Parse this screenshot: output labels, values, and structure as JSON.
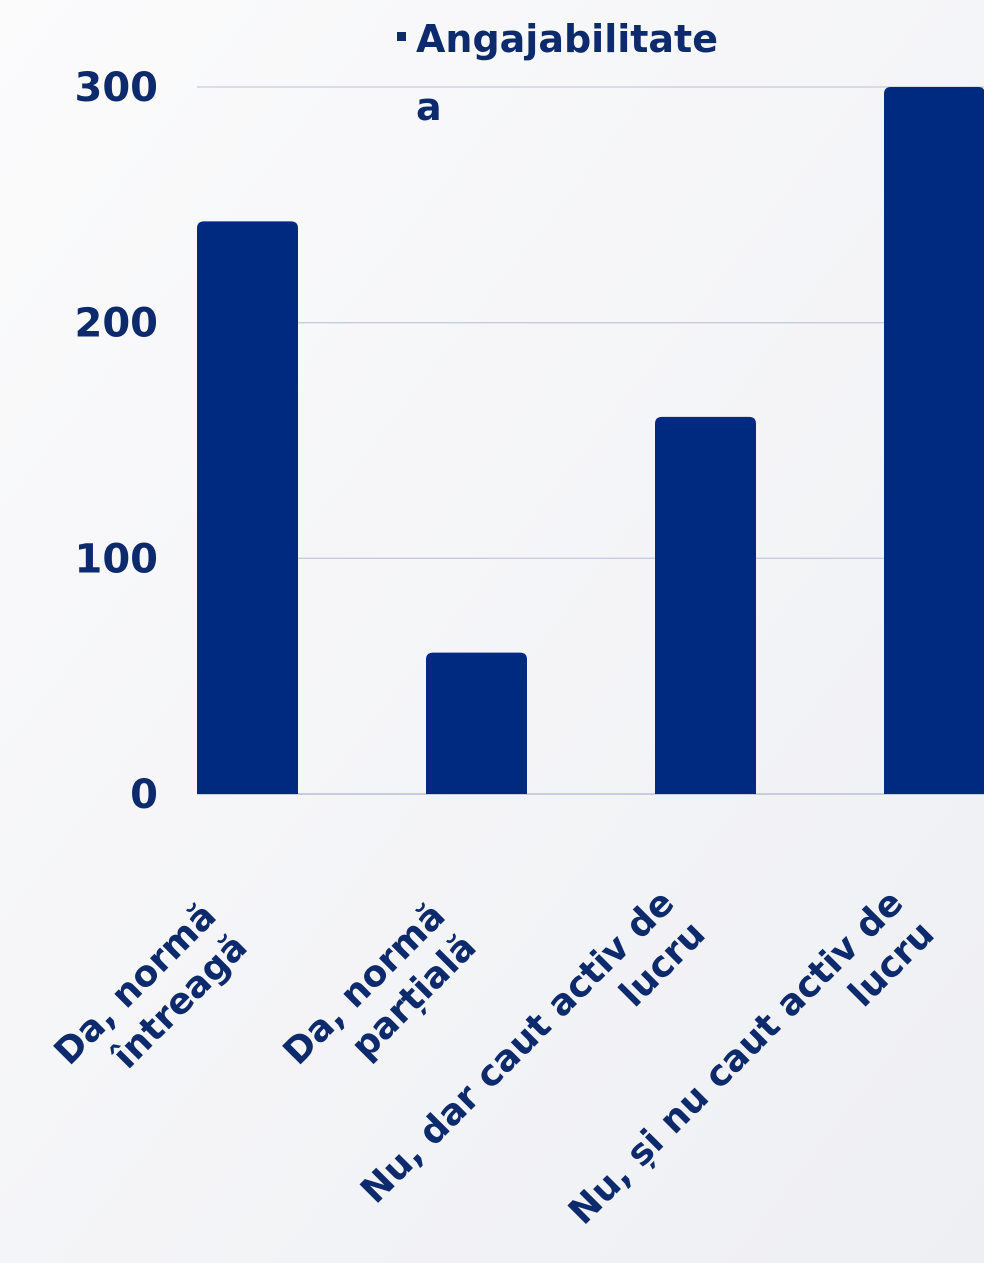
{
  "chart_data": {
    "type": "bar",
    "title": "",
    "xlabel": "",
    "ylabel": "",
    "categories": [
      [
        "Da, normă",
        "întreagă"
      ],
      [
        "Da, normă",
        "parțială"
      ],
      [
        "Nu, dar caut activ de",
        "lucru"
      ],
      [
        "Nu, și nu caut activ de",
        "lucru"
      ]
    ],
    "series": [
      {
        "name": "Angajabilitatea",
        "name_lines": [
          "Angajabilitate",
          "a"
        ],
        "values": [
          243,
          60,
          160,
          300
        ]
      }
    ],
    "ylim": [
      0,
      300
    ],
    "yticks": [
      0,
      100,
      200,
      300
    ],
    "grid": true,
    "legend_position": "top",
    "colors": {
      "bar": "#002a7f",
      "text": "#0d2a6c",
      "grid": "#c6cbe0",
      "axis": "#b9bfd6",
      "background": "#f6f6f8"
    }
  }
}
